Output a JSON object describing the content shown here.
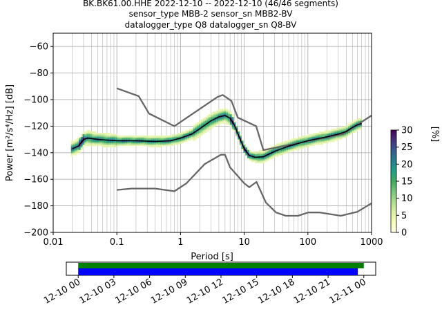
{
  "figure": {
    "title_lines": [
      "BK.BK61.00.HHE   2022-12-10 -- 2022-12-10  (46/46 segments)",
      "sensor_type MBB-2 sensor_sn MBB2-BV",
      "datalogger_type Q8 datalogger_sn Q8-BV"
    ]
  },
  "chart_data": [
    {
      "type": "heatmap",
      "title": "BK.BK61.00.HHE   2022-12-10 -- 2022-12-10  (46/46 segments)",
      "xlabel": "Period [s]",
      "ylabel": "Power [m²/s⁴/Hz] [dB]",
      "xscale": "log",
      "xlim": [
        0.01,
        1000
      ],
      "ylim": [
        -200,
        -50
      ],
      "grid": true,
      "x_ticks": [
        {
          "value": 0.01,
          "label": "0.01"
        },
        {
          "value": 0.1,
          "label": "0.1"
        },
        {
          "value": 1,
          "label": "1"
        },
        {
          "value": 10,
          "label": "10"
        },
        {
          "value": 100,
          "label": "100"
        },
        {
          "value": 1000,
          "label": "1000"
        }
      ],
      "y_ticks": [
        -60,
        -80,
        -100,
        -120,
        -140,
        -160,
        -180,
        -200
      ],
      "colorbar": {
        "label": "[%]",
        "range": [
          0,
          30
        ],
        "ticks": [
          0,
          5,
          10,
          15,
          20,
          25,
          30
        ],
        "colormap": [
          "#ffffe5",
          "#f7fcb9",
          "#d9f0a3",
          "#addd8e",
          "#78c679",
          "#41ab5d",
          "#1fa187",
          "#277f8e",
          "#365c8d",
          "#46327e",
          "#440154"
        ]
      },
      "series": [
        {
          "name": "",
          "role": "new high noise model",
          "color": "#666666",
          "x": [
            0.1,
            0.22,
            0.32,
            0.8,
            3.8,
            4.6,
            6.3,
            7.9,
            15.4,
            20,
            354.8,
            1000
          ],
          "y": [
            -91.5,
            -97.4,
            -110.5,
            -120,
            -98,
            -96.5,
            -101,
            -113.5,
            -120,
            -138,
            -126,
            -112
          ]
        },
        {
          "name": "",
          "role": "new low noise model",
          "color": "#666666",
          "x": [
            0.1,
            0.17,
            0.4,
            0.8,
            1.24,
            2.4,
            4.3,
            5.0,
            6.0,
            10.0,
            12.0,
            15.6,
            21.9,
            31.6,
            45,
            70,
            101,
            154,
            328,
            600,
            1000
          ],
          "y": [
            -168,
            -167,
            -167,
            -169,
            -163,
            -148.5,
            -141.5,
            -141.5,
            -151,
            -163,
            -166,
            -162,
            -177.5,
            -185,
            -187.5,
            -187.5,
            -185,
            -185,
            -187.5,
            -184.5,
            -178
          ]
        },
        {
          "name": "",
          "role": "mean",
          "color": "#000000",
          "x": [
            0.02,
            0.025,
            0.03,
            0.035,
            0.05,
            0.1,
            0.2,
            0.4,
            0.7,
            1.0,
            1.5,
            2.0,
            3.0,
            4.0,
            5.0,
            6.0,
            7.0,
            8.0,
            10,
            12,
            15,
            20,
            30,
            50,
            100,
            200,
            300,
            400,
            500,
            600,
            700
          ],
          "y": [
            -137,
            -135,
            -130,
            -129,
            -130,
            -131,
            -131,
            -131.5,
            -131,
            -129,
            -126,
            -122,
            -116,
            -113,
            -112,
            -114,
            -119,
            -126,
            -137,
            -142,
            -143.5,
            -143,
            -139,
            -135,
            -131,
            -128,
            -126,
            -124,
            -121,
            -119,
            -118
          ]
        }
      ]
    },
    {
      "type": "timeline",
      "x_ticks": [
        "12-10 00",
        "12-10 03",
        "12-10 06",
        "12-10 09",
        "12-10 12",
        "12-10 15",
        "12-10 18",
        "12-10 21",
        "12-11 00"
      ],
      "xlim": [
        "12-09 23:00",
        "12-11 01:00"
      ],
      "bars": [
        {
          "name": "",
          "color": "#008000",
          "start": "12-10 00:00",
          "end": "12-11 00:00"
        },
        {
          "name": "",
          "color": "#0000ff",
          "start": "12-10 00:00",
          "end": "12-10 23:30"
        }
      ]
    }
  ]
}
